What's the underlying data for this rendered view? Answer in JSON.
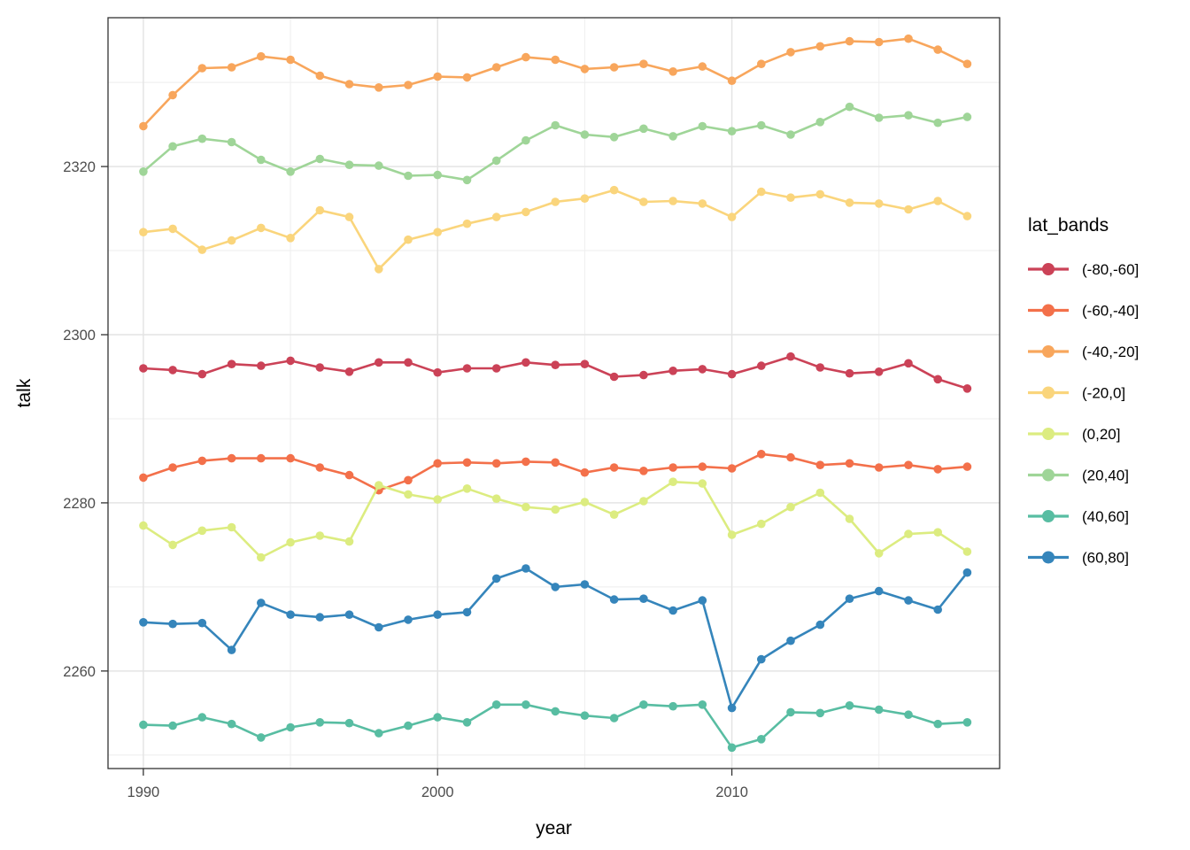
{
  "figure": {
    "xlabel": "year",
    "ylabel": "talk",
    "legend_title": "lat_bands"
  },
  "chart_data": {
    "type": "line",
    "title": "",
    "xlabel": "year",
    "ylabel": "talk",
    "legend_title": "lat_bands",
    "legend_position": "right",
    "grid": true,
    "x": [
      1990,
      1991,
      1992,
      1993,
      1994,
      1995,
      1996,
      1997,
      1998,
      1999,
      2000,
      2001,
      2002,
      2003,
      2004,
      2005,
      2006,
      2007,
      2008,
      2009,
      2010,
      2011,
      2012,
      2013,
      2014,
      2015,
      2016,
      2017,
      2018
    ],
    "xlim": [
      1988.8,
      2019.1
    ],
    "ylim": [
      2248.4,
      2337.7
    ],
    "x_major_ticks": [
      1990,
      2000,
      2010
    ],
    "x_minor_ticks": [
      1995,
      2005,
      2015
    ],
    "y_major_ticks": [
      2260,
      2280,
      2300,
      2320
    ],
    "y_minor_ticks": [
      2250,
      2270,
      2290,
      2310,
      2330
    ],
    "series": [
      {
        "name": "(-80,-60]",
        "color": "#cb4257",
        "values": [
          2296.0,
          2295.8,
          2295.3,
          2296.5,
          2296.3,
          2296.9,
          2296.1,
          2295.6,
          2296.7,
          2296.7,
          2295.5,
          2296.0,
          2296.0,
          2296.7,
          2296.4,
          2296.5,
          2295.0,
          2295.2,
          2295.7,
          2295.9,
          2295.3,
          2296.3,
          2297.4,
          2296.1,
          2295.4,
          2295.6,
          2296.6,
          2294.7,
          2293.6
        ]
      },
      {
        "name": "(-60,-40]",
        "color": "#f3704a",
        "values": [
          2283.0,
          2284.2,
          2285.0,
          2285.3,
          2285.3,
          2285.3,
          2284.2,
          2283.3,
          2281.5,
          2282.7,
          2284.7,
          2284.8,
          2284.7,
          2284.9,
          2284.8,
          2283.6,
          2284.2,
          2283.8,
          2284.2,
          2284.3,
          2284.1,
          2285.8,
          2285.4,
          2284.5,
          2284.7,
          2284.2,
          2284.5,
          2284.0,
          2284.3
        ]
      },
      {
        "name": "(-40,-20]",
        "color": "#f8a65c",
        "values": [
          2324.8,
          2328.5,
          2331.7,
          2331.8,
          2333.1,
          2332.7,
          2330.8,
          2329.8,
          2329.4,
          2329.7,
          2330.7,
          2330.6,
          2331.8,
          2333.0,
          2332.7,
          2331.6,
          2331.8,
          2332.2,
          2331.3,
          2331.9,
          2330.2,
          2332.2,
          2333.6,
          2334.3,
          2334.9,
          2334.8,
          2335.2,
          2333.9,
          2332.2
        ]
      },
      {
        "name": "(-20,0]",
        "color": "#fad57c",
        "values": [
          2312.2,
          2312.6,
          2310.1,
          2311.2,
          2312.7,
          2311.5,
          2314.8,
          2314.0,
          2307.8,
          2311.3,
          2312.2,
          2313.2,
          2314.0,
          2314.6,
          2315.8,
          2316.2,
          2317.2,
          2315.8,
          2315.9,
          2315.6,
          2314.0,
          2317.0,
          2316.3,
          2316.7,
          2315.7,
          2315.6,
          2314.9,
          2315.9,
          2314.1
        ]
      },
      {
        "name": "(0,20]",
        "color": "#dcec80",
        "values": [
          2277.3,
          2275.0,
          2276.7,
          2277.1,
          2273.5,
          2275.3,
          2276.1,
          2275.4,
          2282.1,
          2281.0,
          2280.4,
          2281.7,
          2280.5,
          2279.5,
          2279.2,
          2280.1,
          2278.6,
          2280.2,
          2282.5,
          2282.3,
          2276.2,
          2277.5,
          2279.5,
          2281.2,
          2278.1,
          2274.0,
          2276.3,
          2276.5,
          2274.2
        ]
      },
      {
        "name": "(20,40]",
        "color": "#9fd598",
        "values": [
          2319.4,
          2322.4,
          2323.3,
          2322.9,
          2320.8,
          2319.4,
          2320.9,
          2320.2,
          2320.1,
          2318.9,
          2319.0,
          2318.4,
          2320.7,
          2323.1,
          2324.9,
          2323.8,
          2323.5,
          2324.5,
          2323.6,
          2324.8,
          2324.2,
          2324.9,
          2323.8,
          2325.3,
          2327.1,
          2325.8,
          2326.1,
          2325.2,
          2325.9
        ]
      },
      {
        "name": "(40,60]",
        "color": "#58bda2",
        "values": [
          2253.6,
          2253.5,
          2254.5,
          2253.7,
          2252.1,
          2253.3,
          2253.9,
          2253.8,
          2252.6,
          2253.5,
          2254.5,
          2253.9,
          2256.0,
          2256.0,
          2255.2,
          2254.7,
          2254.4,
          2256.0,
          2255.8,
          2256.0,
          2250.9,
          2251.9,
          2255.1,
          2255.0,
          2255.9,
          2255.4,
          2254.8,
          2253.7,
          2253.9
        ]
      },
      {
        "name": "(60,80]",
        "color": "#3585bb",
        "values": [
          2265.8,
          2265.6,
          2265.7,
          2262.5,
          2268.1,
          2266.7,
          2266.4,
          2266.7,
          2265.2,
          2266.1,
          2266.7,
          2267.0,
          2271.0,
          2272.2,
          2270.0,
          2270.3,
          2268.5,
          2268.6,
          2267.2,
          2268.4,
          2255.6,
          2261.4,
          2263.6,
          2265.5,
          2268.6,
          2269.5,
          2268.4,
          2267.3,
          2271.7
        ]
      }
    ],
    "style": {
      "panel_background": "#ffffff",
      "panel_border": "#333333",
      "grid_major_color": "#e4e4e4",
      "grid_minor_color": "#eeeeee",
      "tick_color": "#333333",
      "tick_label_color": "#4d4d4d",
      "point_radius": 4.8,
      "line_width": 2.6
    }
  }
}
